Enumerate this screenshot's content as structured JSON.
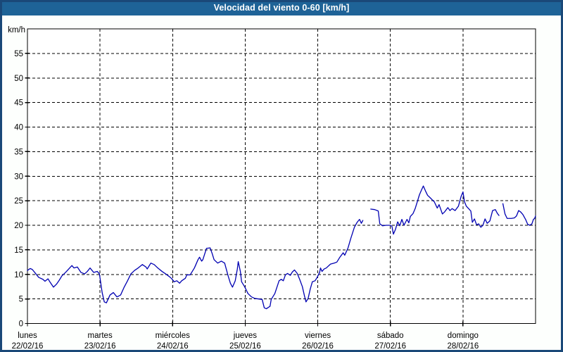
{
  "title_bar": {
    "title": "Velocidad del viento 0-60 [km/h]"
  },
  "colors": {
    "titlebar_bg": "#1e6397",
    "titlebar_text": "#ffffff",
    "outer_border": "#1a4878",
    "page_bg": "#fdfffd",
    "plot_bg": "#ffffff",
    "grid": "#000000",
    "axis": "#000000",
    "tick_text": "#000000",
    "line": "#0000b2"
  },
  "chart_data": {
    "type": "line",
    "title": "Velocidad del viento 0-60 [km/h]",
    "ylabel": "km/h",
    "xlabel": "",
    "ylim": [
      0,
      60
    ],
    "ytick_step": 5,
    "ytick_labels": [
      "0",
      "5",
      "10",
      "15",
      "20",
      "25",
      "30",
      "35",
      "40",
      "45",
      "50",
      "55"
    ],
    "x_unit": "hours",
    "xlim": [
      0,
      168
    ],
    "grid": "dashed",
    "legend_position": "none",
    "days": [
      {
        "name": "lunes",
        "date": "22/02/16"
      },
      {
        "name": "martes",
        "date": "23/02/16"
      },
      {
        "name": "miércoles",
        "date": "24/02/16"
      },
      {
        "name": "jueves",
        "date": "25/02/16"
      },
      {
        "name": "viernes",
        "date": "26/02/16"
      },
      {
        "name": "sábado",
        "date": "27/02/16"
      },
      {
        "name": "domingo",
        "date": "28/02/16"
      }
    ],
    "series": [
      {
        "name": "Velocidad del viento [km/h]",
        "color": "#0000b2",
        "segments": [
          [
            [
              0.0,
              10.8
            ],
            [
              0.9,
              11.2
            ],
            [
              1.6,
              11.0
            ],
            [
              2.8,
              10.1
            ],
            [
              3.7,
              9.4
            ],
            [
              5.1,
              9.0
            ],
            [
              5.8,
              8.6
            ],
            [
              6.8,
              9.1
            ],
            [
              7.5,
              8.4
            ],
            [
              8.6,
              7.4
            ],
            [
              9.6,
              8.0
            ],
            [
              10.5,
              8.8
            ],
            [
              11.4,
              9.7
            ],
            [
              12.6,
              10.4
            ],
            [
              13.5,
              11.0
            ],
            [
              14.7,
              11.8
            ],
            [
              15.4,
              11.3
            ],
            [
              16.5,
              11.5
            ],
            [
              17.7,
              10.4
            ],
            [
              18.9,
              10.1
            ],
            [
              19.8,
              10.6
            ],
            [
              20.7,
              11.3
            ],
            [
              21.9,
              10.4
            ],
            [
              23.1,
              10.6
            ],
            [
              23.8,
              10.1
            ],
            [
              24.7,
              6.3
            ],
            [
              25.4,
              4.4
            ],
            [
              26.1,
              4.2
            ],
            [
              27.3,
              5.8
            ],
            [
              28.4,
              6.3
            ],
            [
              29.6,
              5.4
            ],
            [
              30.8,
              5.8
            ],
            [
              31.9,
              7.3
            ],
            [
              33.1,
              8.7
            ],
            [
              34.2,
              10.1
            ],
            [
              35.4,
              10.8
            ],
            [
              36.6,
              11.3
            ],
            [
              38.0,
              12.0
            ],
            [
              39.2,
              11.5
            ],
            [
              39.6,
              11.1
            ],
            [
              40.8,
              12.3
            ],
            [
              41.9,
              12.0
            ],
            [
              43.1,
              11.3
            ],
            [
              44.5,
              10.6
            ],
            [
              45.7,
              10.1
            ],
            [
              46.8,
              9.6
            ],
            [
              47.6,
              9.2
            ],
            [
              48.5,
              8.5
            ],
            [
              49.4,
              8.7
            ],
            [
              50.3,
              8.2
            ],
            [
              51.0,
              8.7
            ],
            [
              52.2,
              9.2
            ],
            [
              52.7,
              9.9
            ],
            [
              53.8,
              9.9
            ],
            [
              55.2,
              11.3
            ],
            [
              56.4,
              13.0
            ],
            [
              56.9,
              13.5
            ],
            [
              57.6,
              12.7
            ],
            [
              58.0,
              13.0
            ],
            [
              59.2,
              15.3
            ],
            [
              60.4,
              15.4
            ],
            [
              61.1,
              14.2
            ],
            [
              61.7,
              13.0
            ],
            [
              62.9,
              12.3
            ],
            [
              64.1,
              12.7
            ],
            [
              65.2,
              12.3
            ],
            [
              66.4,
              9.6
            ],
            [
              67.1,
              8.2
            ],
            [
              67.8,
              7.4
            ],
            [
              68.7,
              8.7
            ],
            [
              69.4,
              11.1
            ],
            [
              69.7,
              12.6
            ],
            [
              70.4,
              10.6
            ],
            [
              70.8,
              8.5
            ],
            [
              71.8,
              7.5
            ],
            [
              72.9,
              6.1
            ],
            [
              74.1,
              5.4
            ],
            [
              75.2,
              5.1
            ],
            [
              77.6,
              4.9
            ],
            [
              78.3,
              3.2
            ],
            [
              79.0,
              3.0
            ],
            [
              80.2,
              3.5
            ],
            [
              80.6,
              4.9
            ],
            [
              81.8,
              6.1
            ],
            [
              83.2,
              8.7
            ],
            [
              83.9,
              9.0
            ],
            [
              84.6,
              8.7
            ],
            [
              85.3,
              9.9
            ],
            [
              86.0,
              10.2
            ],
            [
              86.9,
              9.8
            ],
            [
              87.6,
              10.5
            ],
            [
              88.3,
              10.9
            ],
            [
              89.2,
              10.2
            ],
            [
              90.0,
              9.0
            ],
            [
              90.9,
              7.5
            ],
            [
              91.6,
              5.6
            ],
            [
              92.1,
              4.4
            ],
            [
              92.8,
              5.1
            ],
            [
              93.5,
              7.0
            ],
            [
              94.2,
              8.5
            ],
            [
              95.1,
              8.7
            ],
            [
              95.8,
              9.4
            ],
            [
              96.6,
              10.4
            ],
            [
              96.9,
              11.3
            ],
            [
              97.4,
              10.6
            ],
            [
              98.1,
              11.1
            ],
            [
              98.8,
              11.3
            ],
            [
              100.2,
              12.1
            ],
            [
              101.4,
              12.3
            ],
            [
              102.3,
              12.5
            ],
            [
              103.3,
              13.5
            ],
            [
              104.4,
              14.4
            ],
            [
              104.9,
              13.9
            ],
            [
              106.0,
              15.4
            ],
            [
              106.9,
              17.3
            ],
            [
              108.1,
              19.6
            ],
            [
              109.0,
              20.6
            ],
            [
              109.8,
              21.2
            ],
            [
              110.4,
              20.4
            ],
            [
              110.9,
              21.0
            ]
          ],
          [
            [
              113.5,
              23.3
            ],
            [
              114.8,
              23.2
            ],
            [
              116.0,
              22.9
            ],
            [
              116.5,
              20.3
            ],
            [
              117.4,
              19.9
            ],
            [
              118.6,
              20.0
            ],
            [
              120.0,
              20.0
            ],
            [
              120.5,
              19.8
            ],
            [
              121.0,
              18.2
            ],
            [
              121.7,
              19.2
            ],
            [
              122.4,
              20.7
            ],
            [
              123.1,
              19.9
            ],
            [
              123.8,
              21.2
            ],
            [
              124.5,
              20.0
            ],
            [
              125.5,
              21.2
            ],
            [
              126.1,
              20.5
            ],
            [
              126.6,
              21.8
            ],
            [
              127.5,
              22.4
            ],
            [
              128.2,
              23.4
            ],
            [
              128.9,
              24.8
            ],
            [
              129.6,
              26.2
            ],
            [
              130.3,
              27.2
            ],
            [
              130.9,
              28.0
            ],
            [
              131.6,
              27.0
            ],
            [
              132.3,
              26.1
            ],
            [
              133.0,
              25.7
            ],
            [
              133.8,
              25.2
            ],
            [
              134.5,
              24.8
            ],
            [
              135.5,
              23.5
            ],
            [
              136.1,
              24.2
            ],
            [
              137.2,
              22.3
            ],
            [
              137.9,
              22.7
            ],
            [
              139.0,
              23.6
            ],
            [
              139.7,
              23.0
            ],
            [
              140.4,
              23.4
            ],
            [
              141.4,
              23.0
            ],
            [
              142.5,
              23.9
            ],
            [
              143.4,
              25.9
            ],
            [
              144.0,
              26.8
            ],
            [
              144.5,
              24.8
            ],
            [
              145.1,
              23.9
            ],
            [
              146.0,
              23.3
            ],
            [
              146.6,
              22.9
            ],
            [
              147.1,
              20.6
            ],
            [
              147.8,
              21.3
            ],
            [
              148.5,
              20.1
            ],
            [
              149.2,
              20.3
            ],
            [
              149.9,
              19.6
            ],
            [
              150.6,
              20.0
            ],
            [
              151.3,
              21.3
            ],
            [
              152.0,
              20.4
            ],
            [
              152.9,
              20.9
            ],
            [
              153.8,
              23.0
            ],
            [
              154.7,
              23.2
            ],
            [
              155.4,
              22.4
            ],
            [
              155.9,
              22.0
            ]
          ],
          [
            [
              157.2,
              24.4
            ],
            [
              157.9,
              22.3
            ],
            [
              158.6,
              21.4
            ],
            [
              160.0,
              21.4
            ],
            [
              161.0,
              21.5
            ],
            [
              161.7,
              21.9
            ],
            [
              162.4,
              23.0
            ],
            [
              163.1,
              22.7
            ],
            [
              163.8,
              22.2
            ],
            [
              164.7,
              21.2
            ],
            [
              165.4,
              20.2
            ],
            [
              166.1,
              20.0
            ],
            [
              166.8,
              20.3
            ],
            [
              167.3,
              21.2
            ],
            [
              167.7,
              21.4
            ],
            [
              168.0,
              21.9
            ]
          ]
        ]
      }
    ]
  }
}
